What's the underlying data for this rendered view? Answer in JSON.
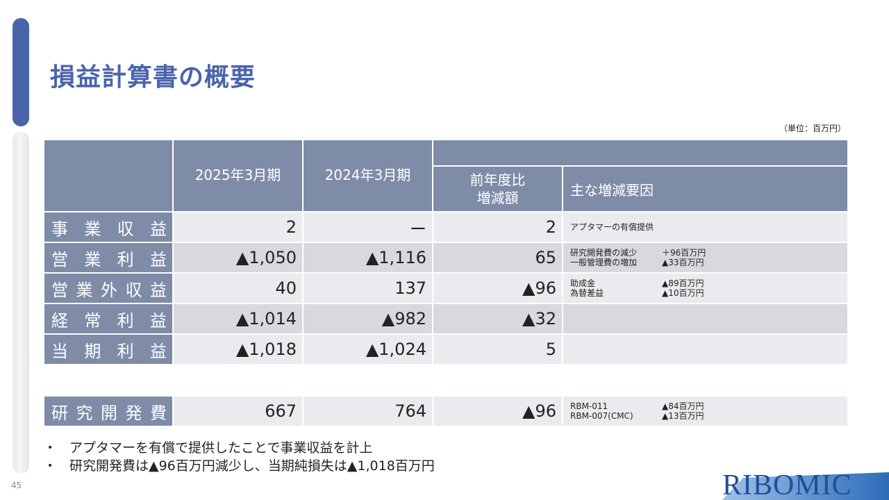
{
  "title": "損益計算書の概要",
  "unit": "（単位：百万円）",
  "headers": {
    "col_2025": "2025年3月期",
    "col_2024": "2024年3月期",
    "col_diff_line1": "前年度比",
    "col_diff_line2": "増減額",
    "col_factor": "主な増減要因"
  },
  "rows": [
    {
      "label": [
        "事",
        "業",
        "収",
        "益"
      ],
      "v2025": "2",
      "v2024": "ー",
      "diff": "2",
      "notes": [
        {
          "item": "アプタマーの有償提供",
          "amount": ""
        }
      ]
    },
    {
      "label": [
        "営",
        "業",
        "利",
        "益"
      ],
      "v2025": "▲1,050",
      "v2024": "▲1,116",
      "diff": "65",
      "notes": [
        {
          "item": "研究開発費の減少",
          "amount": "＋96百万円"
        },
        {
          "item": "一般管理費の増加",
          "amount": "▲33百万円"
        }
      ]
    },
    {
      "label": [
        "営",
        "業",
        "外",
        "収",
        "益"
      ],
      "v2025": "40",
      "v2024": "137",
      "diff": "▲96",
      "notes": [
        {
          "item": "助成金",
          "amount": "▲89百万円"
        },
        {
          "item": "為替差益",
          "amount": "▲10百万円"
        }
      ]
    },
    {
      "label": [
        "経",
        "常",
        "利",
        "益"
      ],
      "v2025": "▲1,014",
      "v2024": "▲982",
      "diff": "▲32",
      "notes": []
    },
    {
      "label": [
        "当",
        "期",
        "利",
        "益"
      ],
      "v2025": "▲1,018",
      "v2024": "▲1,024",
      "diff": "5",
      "notes": []
    }
  ],
  "rd_row": {
    "label": [
      "研",
      "究",
      "開",
      "発",
      "費"
    ],
    "v2025": "667",
    "v2024": "764",
    "diff": "▲96",
    "notes": [
      {
        "item": "RBM-011",
        "amount": "▲84百万円"
      },
      {
        "item": "RBM-007(CMC)",
        "amount": "▲13百万円"
      }
    ]
  },
  "bullets": [
    "アプタマーを有償で提供したことで事業収益を計上",
    "研究開発費は▲96百万円減少し、当期純損失は▲1,018百万円"
  ],
  "page_number": "45",
  "logo_text": "RIBOMIC",
  "colors": {
    "accent": "#4a64ac",
    "header_bg": "#7f8ca8",
    "row_light": "#eaebee",
    "row_dark": "#d7d9df"
  }
}
